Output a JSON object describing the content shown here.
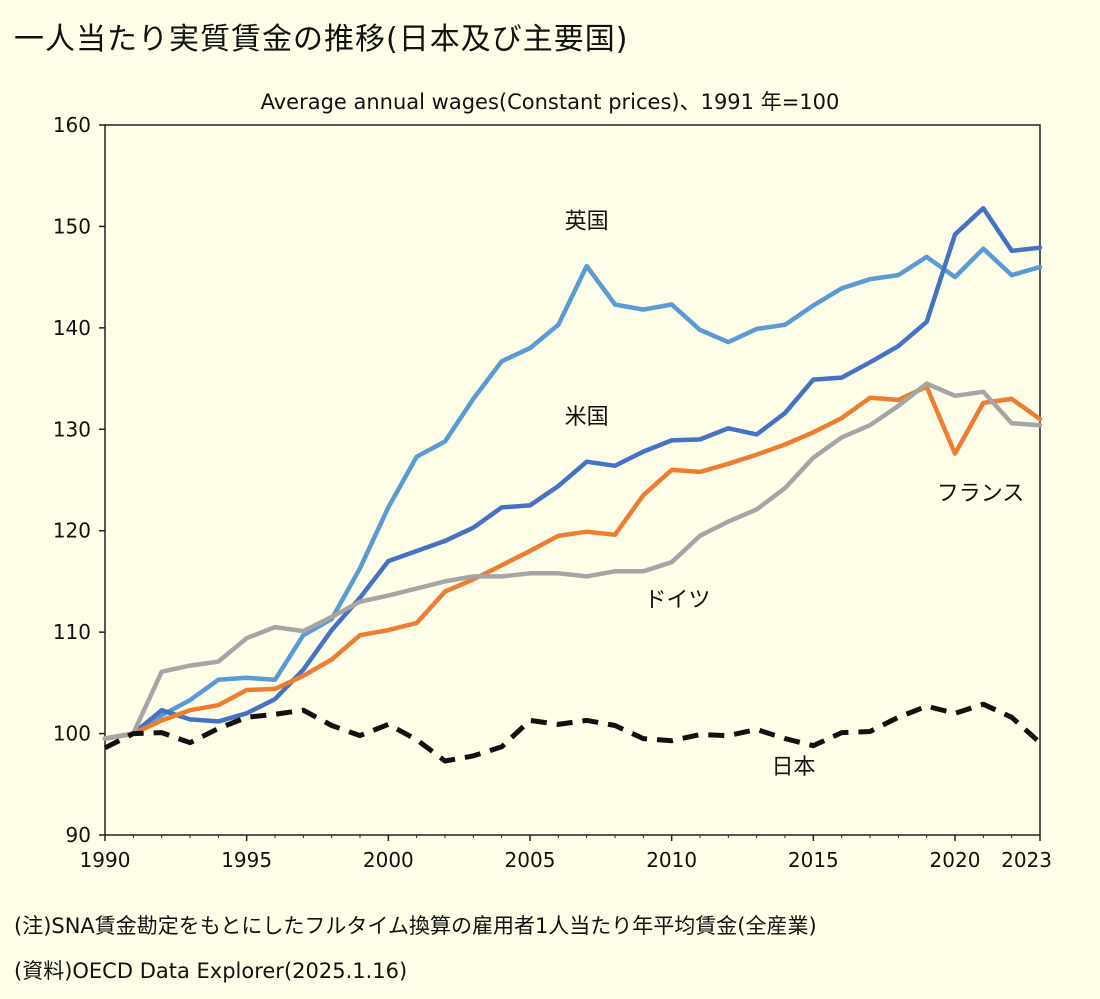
{
  "header": {
    "title": "一人当たり実質賃金の推移(日本及び主要国)",
    "subtitle": "Average annual wages(Constant prices)、1991 年=100"
  },
  "footer": {
    "note": "(注)SNA賃金勘定をもとにしたフルタイム換算の雇用者1人当たり年平均賃金(全産業)",
    "source": "(資料)OECD Data Explorer(2025.1.16)"
  },
  "chart_data": {
    "type": "line",
    "title": "一人当たり実質賃金の推移(日本及び主要国)",
    "subtitle": "Average annual wages(Constant prices)、1991 年=100",
    "xlim": [
      1990,
      2023
    ],
    "ylim": [
      90,
      160
    ],
    "x_ticks": [
      1990,
      1995,
      2000,
      2005,
      2010,
      2015,
      2020,
      2023
    ],
    "y_ticks": [
      90,
      100,
      110,
      120,
      130,
      140,
      150,
      160
    ],
    "x": [
      1990,
      1991,
      1992,
      1993,
      1994,
      1995,
      1996,
      1997,
      1998,
      1999,
      2000,
      2001,
      2002,
      2003,
      2004,
      2005,
      2006,
      2007,
      2008,
      2009,
      2010,
      2011,
      2012,
      2013,
      2014,
      2015,
      2016,
      2017,
      2018,
      2019,
      2020,
      2021,
      2022,
      2023
    ],
    "series": [
      {
        "name": "英国",
        "color": "#5b9bd5",
        "dash": false,
        "values": [
          99.5,
          100,
          101.8,
          103.3,
          105.3,
          105.5,
          105.3,
          109.7,
          111.3,
          116.3,
          122.3,
          127.3,
          128.8,
          133.0,
          136.7,
          138.0,
          140.3,
          146.1,
          142.3,
          141.8,
          142.3,
          139.8,
          138.6,
          139.9,
          140.3,
          142.2,
          143.9,
          144.8,
          145.2,
          147.0,
          145.0,
          147.8,
          145.2,
          146.0
        ]
      },
      {
        "name": "米国",
        "color": "#4472c4",
        "dash": false,
        "values": [
          99.5,
          100,
          102.3,
          101.4,
          101.2,
          102.0,
          103.4,
          106.3,
          110.2,
          113.4,
          117.0,
          118.0,
          119.0,
          120.3,
          122.3,
          122.5,
          124.4,
          126.8,
          126.4,
          127.8,
          128.9,
          129.0,
          130.1,
          129.5,
          131.6,
          134.9,
          135.1,
          136.6,
          138.2,
          140.6,
          149.2,
          151.8,
          147.6,
          147.9
        ]
      },
      {
        "name": "フランス",
        "color": "#ed7d31",
        "dash": false,
        "values": [
          99.5,
          100,
          101.3,
          102.3,
          102.8,
          104.3,
          104.4,
          105.7,
          107.3,
          109.7,
          110.2,
          110.9,
          114.0,
          115.2,
          116.6,
          118.0,
          119.5,
          119.9,
          119.6,
          123.5,
          126.0,
          125.8,
          126.6,
          127.5,
          128.5,
          129.7,
          131.1,
          133.1,
          132.9,
          134.2,
          127.6,
          132.6,
          133.0,
          131.0
        ]
      },
      {
        "name": "ドイツ",
        "color": "#a5a5a5",
        "dash": false,
        "values": [
          99.5,
          100,
          106.1,
          106.7,
          107.1,
          109.4,
          110.5,
          110.1,
          111.5,
          113.0,
          113.6,
          114.3,
          115.0,
          115.5,
          115.5,
          115.8,
          115.8,
          115.5,
          116.0,
          116.0,
          116.9,
          119.5,
          120.9,
          122.1,
          124.2,
          127.2,
          129.2,
          130.4,
          132.3,
          134.5,
          133.3,
          133.7,
          130.6,
          130.4
        ]
      },
      {
        "name": "日本",
        "color": "#111111",
        "dash": true,
        "values": [
          98.6,
          100,
          100.1,
          99.1,
          100.5,
          101.6,
          101.9,
          102.3,
          100.8,
          99.8,
          100.9,
          99.4,
          97.3,
          97.8,
          98.7,
          101.3,
          100.9,
          101.3,
          100.8,
          99.5,
          99.3,
          99.9,
          99.8,
          100.4,
          99.5,
          98.8,
          100.1,
          100.2,
          101.6,
          102.7,
          102.0,
          102.9,
          101.6,
          99.1
        ]
      }
    ],
    "series_labels": [
      {
        "series": "英国",
        "x": 2007.0,
        "y": 149.8
      },
      {
        "series": "米国",
        "x": 2007.0,
        "y": 130.5
      },
      {
        "series": "フランス",
        "x": 2020.9,
        "y": 123.0
      },
      {
        "series": "ドイツ",
        "x": 2010.2,
        "y": 112.5
      },
      {
        "series": "日本",
        "x": 2014.3,
        "y": 96.0
      }
    ],
    "grid": false,
    "legend": "inline labels"
  }
}
